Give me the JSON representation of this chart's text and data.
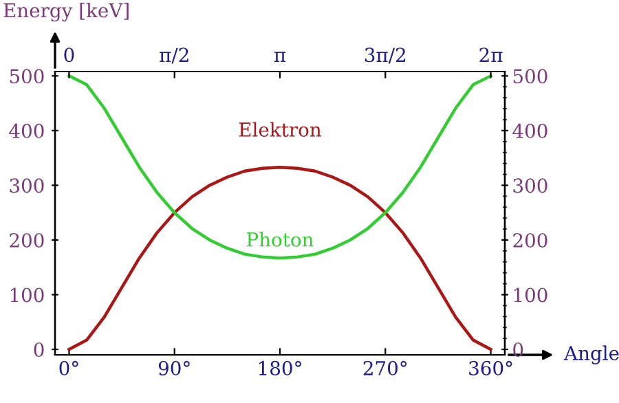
{
  "chart_data": {
    "type": "line",
    "ylabel": "Energy [keV]",
    "xlabel": "Angle",
    "x": [
      0,
      15,
      30,
      45,
      60,
      75,
      90,
      105,
      120,
      135,
      150,
      165,
      180,
      195,
      210,
      225,
      240,
      255,
      270,
      285,
      300,
      315,
      330,
      345,
      360
    ],
    "series": [
      {
        "name": "Elektron",
        "color": "#aa1717",
        "values": [
          0,
          17,
          59,
          113,
          167,
          213,
          250,
          279,
          300,
          315,
          326,
          331,
          333,
          331,
          326,
          315,
          300,
          279,
          250,
          213,
          167,
          113,
          59,
          17,
          0
        ]
      },
      {
        "name": "Photon",
        "color": "#33cc33",
        "values": [
          500,
          484,
          441,
          387,
          333,
          287,
          250,
          221,
          200,
          185,
          174,
          169,
          167,
          169,
          174,
          185,
          200,
          221,
          250,
          287,
          333,
          387,
          441,
          484,
          500
        ]
      }
    ],
    "xlim": [
      -12,
      372
    ],
    "xticks": [
      {
        "value": 0,
        "label": "0°"
      },
      {
        "value": 90,
        "label": "90°"
      },
      {
        "value": 180,
        "label": "180°"
      },
      {
        "value": 270,
        "label": "270°"
      },
      {
        "value": 360,
        "label": "360°"
      }
    ],
    "x2lim": [
      -0.2094,
      6.4926
    ],
    "x2ticks": [
      0,
      {
        "value": 1.5708,
        "label": "π/2"
      },
      {
        "value": 3.1416,
        "label": "π"
      },
      {
        "value": 4.7124,
        "label": "3π/2"
      },
      {
        "value": 6.2832,
        "label": "2π"
      }
    ],
    "ylim": [
      -10,
      508
    ],
    "yticks": [
      0,
      100,
      200,
      300,
      400,
      500
    ],
    "y2lim": [
      -10,
      508
    ],
    "y2ticks": [
      0,
      100,
      200,
      300,
      400,
      500
    ],
    "grid": false,
    "legend": false,
    "marker": "none",
    "line_style": "solid"
  }
}
